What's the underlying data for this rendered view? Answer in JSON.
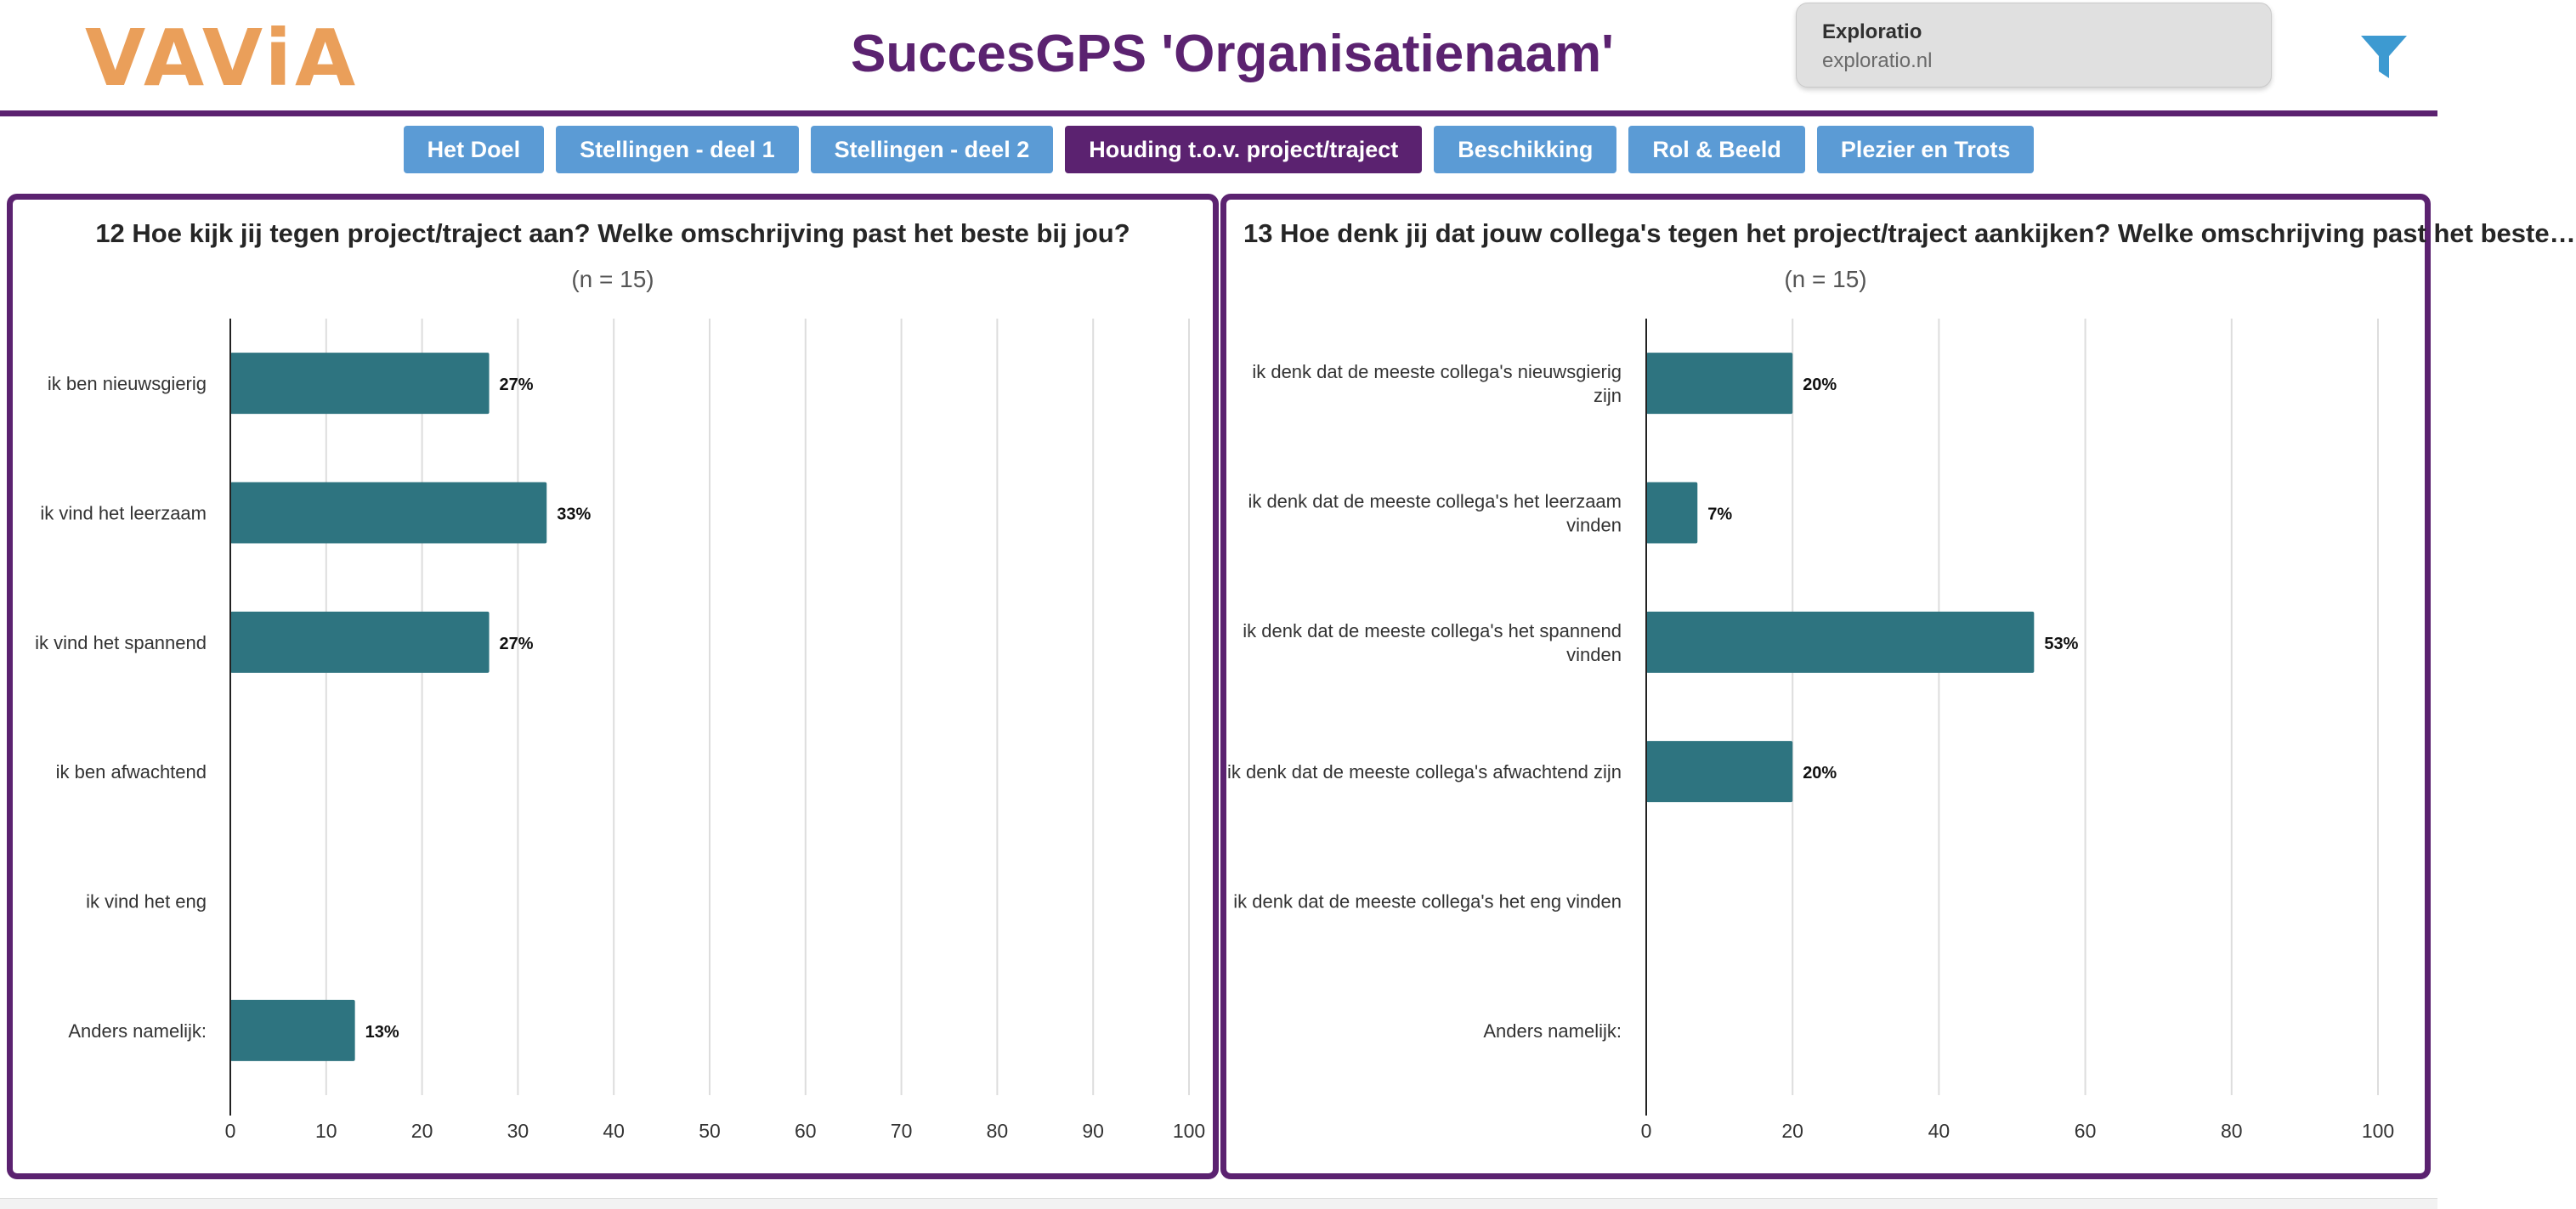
{
  "header": {
    "logo": "VAViA",
    "title": "SuccesGPS 'Organisatienaam'",
    "tooltip_title": "Exploratio",
    "tooltip_url": "exploratio.nl",
    "filter_icon": "filter-icon"
  },
  "colors": {
    "logo": "#ea9f5a",
    "title": "#5b2270",
    "accent": "#5b2270",
    "tab": "#5b9bd5",
    "tab_active": "#5b2270",
    "bar": "#2e7480",
    "filter": "#3d9ad1",
    "grid": "#dddddd",
    "axis": "#222222"
  },
  "tabs": [
    {
      "label": "Het Doel",
      "active": false
    },
    {
      "label": "Stellingen - deel 1",
      "active": false
    },
    {
      "label": "Stellingen - deel 2",
      "active": false
    },
    {
      "label": "Houding t.o.v. project/traject",
      "active": true
    },
    {
      "label": "Beschikking",
      "active": false
    },
    {
      "label": "Rol & Beeld",
      "active": false
    },
    {
      "label": "Plezier en Trots",
      "active": false
    }
  ],
  "chart_data": [
    {
      "type": "bar",
      "orientation": "horizontal",
      "title": "12 Hoe kijk jij tegen project/traject aan? Welke omschrijving past het beste bij jou?",
      "subtitle": "(n = 15)",
      "categories": [
        "ik ben nieuwsgierig",
        "ik vind het leerzaam",
        "ik vind het spannend",
        "ik ben afwachtend",
        "ik vind het eng",
        "Anders namelijk:"
      ],
      "values": [
        27,
        33,
        27,
        0,
        0,
        13
      ],
      "data_labels": [
        "27%",
        "33%",
        "27%",
        "",
        "",
        "13%"
      ],
      "xlim": [
        0,
        100
      ],
      "xticks": [
        0,
        10,
        20,
        30,
        40,
        50,
        60,
        70,
        80,
        90,
        100
      ],
      "grid": true,
      "legend": "none"
    },
    {
      "type": "bar",
      "orientation": "horizontal",
      "title": "13 Hoe denk jij dat jouw collega's tegen het project/traject aankijken? Welke omschrijving past het beste…",
      "subtitle": "(n = 15)",
      "categories": [
        [
          "ik denk dat de meeste collega's nieuwsgierig",
          "zijn"
        ],
        [
          "ik denk dat de meeste collega's het leerzaam",
          "vinden"
        ],
        [
          "ik denk dat de meeste collega's het spannend",
          "vinden"
        ],
        [
          "ik denk dat de meeste collega's afwachtend zijn"
        ],
        [
          "ik denk dat de meeste collega's het eng vinden"
        ],
        [
          "Anders namelijk:"
        ]
      ],
      "values": [
        20,
        7,
        53,
        20,
        0,
        0
      ],
      "data_labels": [
        "20%",
        "7%",
        "53%",
        "20%",
        "",
        ""
      ],
      "xlim": [
        0,
        100
      ],
      "xticks": [
        0,
        20,
        40,
        60,
        80,
        100
      ],
      "grid": true,
      "legend": "none"
    }
  ]
}
